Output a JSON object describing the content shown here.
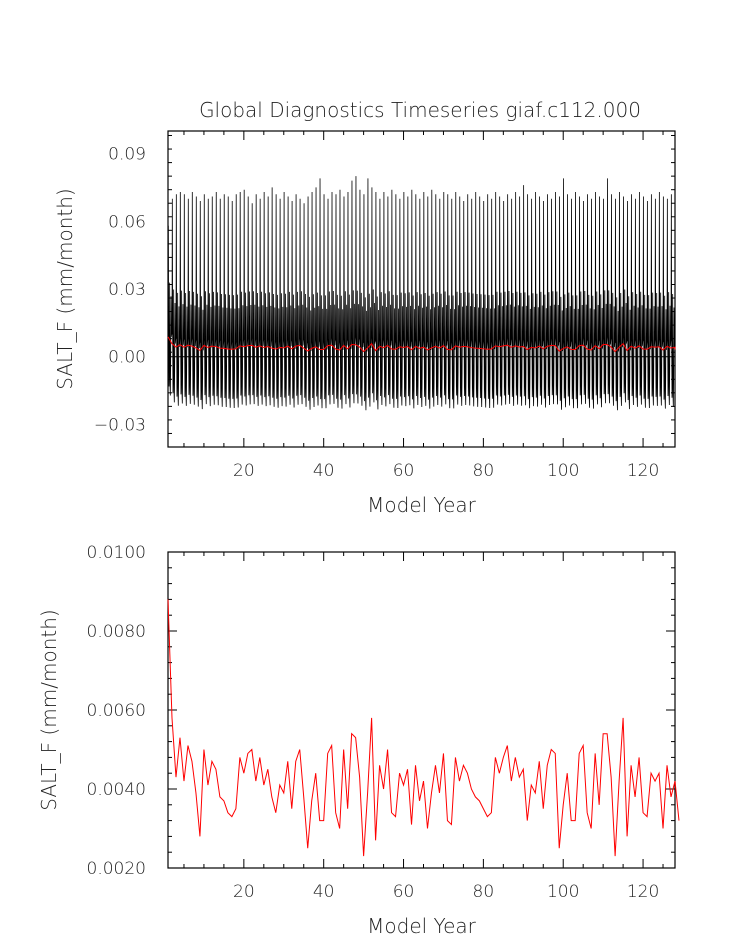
{
  "title": "Global Diagnostics Timeseries giaf.c112.000",
  "colors": {
    "monthly": "#000000",
    "annual": "#ff0000",
    "axis": "#000000"
  },
  "chart_data": [
    {
      "type": "line",
      "title": "Global Diagnostics Timeseries giaf.c112.000",
      "xlabel": "Model Year",
      "ylabel": "SALT_F (mm/month)",
      "xlim": [
        1,
        128
      ],
      "ylim": [
        -0.04,
        0.1
      ],
      "xticks": [
        20,
        40,
        60,
        80,
        100,
        120
      ],
      "xtick_labels": [
        "20",
        "40",
        "60",
        "80",
        "100",
        "120"
      ],
      "yticks": [
        -0.03,
        0.0,
        0.03,
        0.06,
        0.09
      ],
      "ytick_labels": [
        "−0.03",
        "0.00",
        "0.03",
        "0.06",
        "0.09"
      ],
      "zero_line": true,
      "series": [
        {
          "description": "monthly values (12 per year)",
          "color": "#000000",
          "monthly_pattern_offsets": [
            0.004,
            0.006,
            0.003,
            -0.006,
            -0.014,
            -0.019,
            -0.021,
            -0.018,
            -0.012,
            -0.004,
            0.0,
            0.002
          ],
          "peak_month_values": [
            0.068,
            0.08,
            0.082,
            0.083,
            0.082,
            0.08,
            0.083,
            0.081,
            0.079,
            0.082,
            0.08,
            0.081,
            0.083,
            0.08,
            0.082,
            0.081,
            0.079,
            0.082,
            0.083,
            0.084,
            0.081,
            0.078,
            0.082,
            0.08,
            0.083,
            0.081,
            0.085,
            0.082,
            0.08,
            0.083,
            0.081,
            0.079,
            0.082,
            0.08,
            0.078,
            0.081,
            0.083,
            0.085,
            0.089,
            0.082,
            0.08,
            0.083,
            0.082,
            0.084,
            0.081,
            0.083,
            0.088,
            0.09,
            0.084,
            0.082,
            0.089,
            0.085,
            0.083,
            0.08,
            0.083,
            0.081,
            0.084,
            0.082,
            0.08,
            0.083,
            0.081,
            0.084,
            0.082,
            0.08,
            0.083,
            0.081,
            0.084,
            0.082,
            0.08,
            0.083,
            0.082,
            0.08,
            0.083,
            0.081,
            0.079,
            0.082,
            0.08,
            0.083,
            0.081,
            0.079,
            0.082,
            0.08,
            0.083,
            0.081,
            0.079,
            0.082,
            0.08,
            0.083,
            0.081,
            0.086,
            0.082,
            0.08,
            0.083,
            0.081,
            0.079,
            0.082,
            0.08,
            0.083,
            0.081,
            0.089,
            0.082,
            0.08,
            0.083,
            0.081,
            0.079,
            0.082,
            0.08,
            0.083,
            0.081,
            0.08,
            0.089,
            0.082,
            0.08,
            0.083,
            0.081,
            0.079,
            0.082,
            0.08,
            0.083,
            0.081,
            0.079,
            0.082,
            0.08,
            0.083,
            0.081,
            0.08,
            0.082,
            0.08
          ]
        },
        {
          "description": "annual mean",
          "color": "#ff0000",
          "values_ref": "annual_mean"
        }
      ]
    },
    {
      "type": "line",
      "xlabel": "Model Year",
      "ylabel": "SALT_F (mm/month)",
      "xlim": [
        1,
        128
      ],
      "ylim": [
        0.002,
        0.01
      ],
      "xticks": [
        20,
        40,
        60,
        80,
        100,
        120
      ],
      "xtick_labels": [
        "20",
        "40",
        "60",
        "80",
        "100",
        "120"
      ],
      "yticks": [
        0.002,
        0.004,
        0.006,
        0.008,
        0.01
      ],
      "ytick_labels": [
        "0.0020",
        "0.0040",
        "0.0060",
        "0.0080",
        "0.0100"
      ],
      "series": [
        {
          "color": "#ff0000",
          "x_start": 1,
          "values": [
            0.0088,
            0.0058,
            0.0043,
            0.0053,
            0.0042,
            0.0051,
            0.0047,
            0.0039,
            0.0028,
            0.005,
            0.0041,
            0.0047,
            0.0045,
            0.0038,
            0.0037,
            0.0034,
            0.0033,
            0.0035,
            0.0048,
            0.0044,
            0.0049,
            0.005,
            0.0042,
            0.0048,
            0.0041,
            0.0045,
            0.0038,
            0.0034,
            0.0041,
            0.0039,
            0.0047,
            0.0035,
            0.0047,
            0.005,
            0.0038,
            0.0025,
            0.0037,
            0.0044,
            0.0032,
            0.0032,
            0.0049,
            0.0051,
            0.0034,
            0.003,
            0.005,
            0.0035,
            0.0054,
            0.0053,
            0.0043,
            0.0023,
            0.0039,
            0.0058,
            0.0027,
            0.0046,
            0.004,
            0.005,
            0.0034,
            0.0033,
            0.0044,
            0.0041,
            0.0045,
            0.0031,
            0.0046,
            0.0037,
            0.0042,
            0.003,
            0.0039,
            0.0046,
            0.0039,
            0.0049,
            0.0032,
            0.0031,
            0.0048,
            0.0042,
            0.0046,
            0.0044,
            0.004,
            0.0038,
            0.0037,
            0.0035,
            0.0033,
            0.0034,
            0.0048,
            0.0044,
            0.0048,
            0.0051,
            0.0042,
            0.0048,
            0.0043,
            0.0045,
            0.0032,
            0.0041,
            0.0039,
            0.0047,
            0.0035,
            0.0046,
            0.005,
            0.0049,
            0.0025,
            0.0036,
            0.0044,
            0.0032,
            0.0032,
            0.0049,
            0.0051,
            0.0034,
            0.003,
            0.0049,
            0.0036,
            0.0054,
            0.0054,
            0.0043,
            0.0023,
            0.0042,
            0.0058,
            0.0028,
            0.0046,
            0.0038,
            0.0048,
            0.0034,
            0.0033,
            0.0044,
            0.0042,
            0.0044,
            0.003,
            0.0046,
            0.0038,
            0.0042,
            0.0032
          ]
        }
      ]
    }
  ]
}
